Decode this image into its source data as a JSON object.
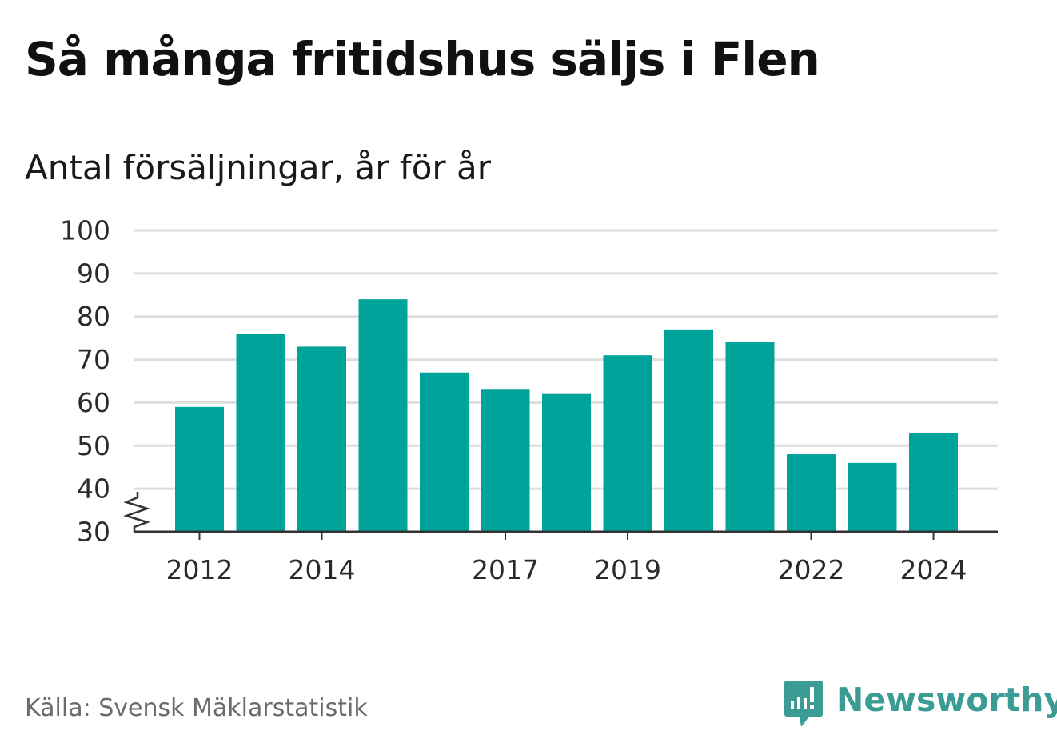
{
  "header": {
    "title": "Så många fritidshus säljs i Flen",
    "subtitle": "Antal försäljningar, år för år"
  },
  "footer": {
    "source": "Källa: Svensk Mäklarstatistik",
    "brand_name": "Newsworthy"
  },
  "colors": {
    "bar": "#00a39a",
    "gridline": "#dedede",
    "axis": "#333333",
    "brand": "#3a9c94",
    "source_text": "#6b6b6b"
  },
  "icons": [
    "newsworthy-logo-icon",
    "axis-break-icon"
  ],
  "chart_data": {
    "type": "bar",
    "title": "Så många fritidshus säljs i Flen",
    "subtitle": "Antal försäljningar, år för år",
    "xlabel": "",
    "ylabel": "",
    "categories": [
      "2012",
      "2013",
      "2014",
      "2015",
      "2016",
      "2017",
      "2018",
      "2019",
      "2020",
      "2021",
      "2022",
      "2023",
      "2024"
    ],
    "values": [
      59,
      76,
      73,
      84,
      67,
      63,
      62,
      71,
      77,
      74,
      48,
      46,
      53
    ],
    "x_tick_labels": [
      "2012",
      "2014",
      "2017",
      "2019",
      "2022",
      "2024"
    ],
    "y_ticks": [
      30,
      40,
      50,
      60,
      70,
      80,
      90,
      100
    ],
    "ylim": [
      30,
      100
    ],
    "axis_break": true,
    "grid": true,
    "legend": "none"
  }
}
